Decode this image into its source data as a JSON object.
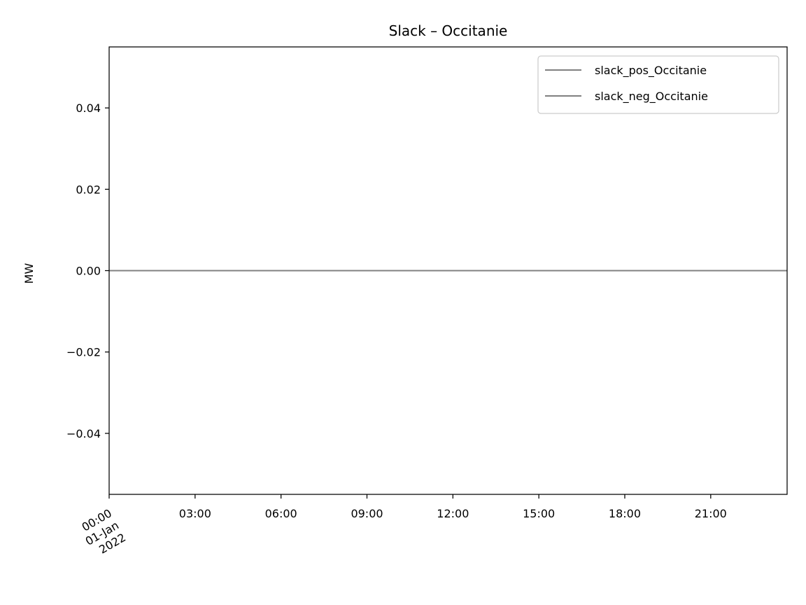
{
  "chart_data": {
    "type": "line",
    "title": "Slack – Occitanie",
    "xlabel": "",
    "ylabel": "MW",
    "x_tick_labels": [
      {
        "value": "2022-01-01T00:00",
        "lines": [
          "00:00",
          "01-Jan",
          "2022"
        ]
      },
      {
        "value": "2022-01-01T03:00",
        "lines": [
          "03:00"
        ]
      },
      {
        "value": "2022-01-01T06:00",
        "lines": [
          "06:00"
        ]
      },
      {
        "value": "2022-01-01T09:00",
        "lines": [
          "09:00"
        ]
      },
      {
        "value": "2022-01-01T12:00",
        "lines": [
          "12:00"
        ]
      },
      {
        "value": "2022-01-01T15:00",
        "lines": [
          "15:00"
        ]
      },
      {
        "value": "2022-01-01T18:00",
        "lines": [
          "18:00"
        ]
      },
      {
        "value": "2022-01-01T21:00",
        "lines": [
          "21:00"
        ]
      }
    ],
    "xlim": [
      "2022-01-01T00:00",
      "2022-01-01T23:40"
    ],
    "y_ticks": [
      {
        "value": -0.04,
        "label": "−0.04"
      },
      {
        "value": -0.02,
        "label": "−0.02"
      },
      {
        "value": 0.0,
        "label": "0.00"
      },
      {
        "value": 0.02,
        "label": "0.02"
      },
      {
        "value": 0.04,
        "label": "0.04"
      }
    ],
    "ylim": [
      -0.055,
      0.055
    ],
    "grid": false,
    "legend_position": "upper right",
    "series": [
      {
        "name": "slack_pos_Occitanie",
        "color": "#808080",
        "x": [
          "2022-01-01T00:00",
          "2022-01-01T23:40"
        ],
        "y": [
          0,
          0
        ]
      },
      {
        "name": "slack_neg_Occitanie",
        "color": "#808080",
        "x": [
          "2022-01-01T00:00",
          "2022-01-01T23:40"
        ],
        "y": [
          0,
          0
        ]
      }
    ]
  }
}
